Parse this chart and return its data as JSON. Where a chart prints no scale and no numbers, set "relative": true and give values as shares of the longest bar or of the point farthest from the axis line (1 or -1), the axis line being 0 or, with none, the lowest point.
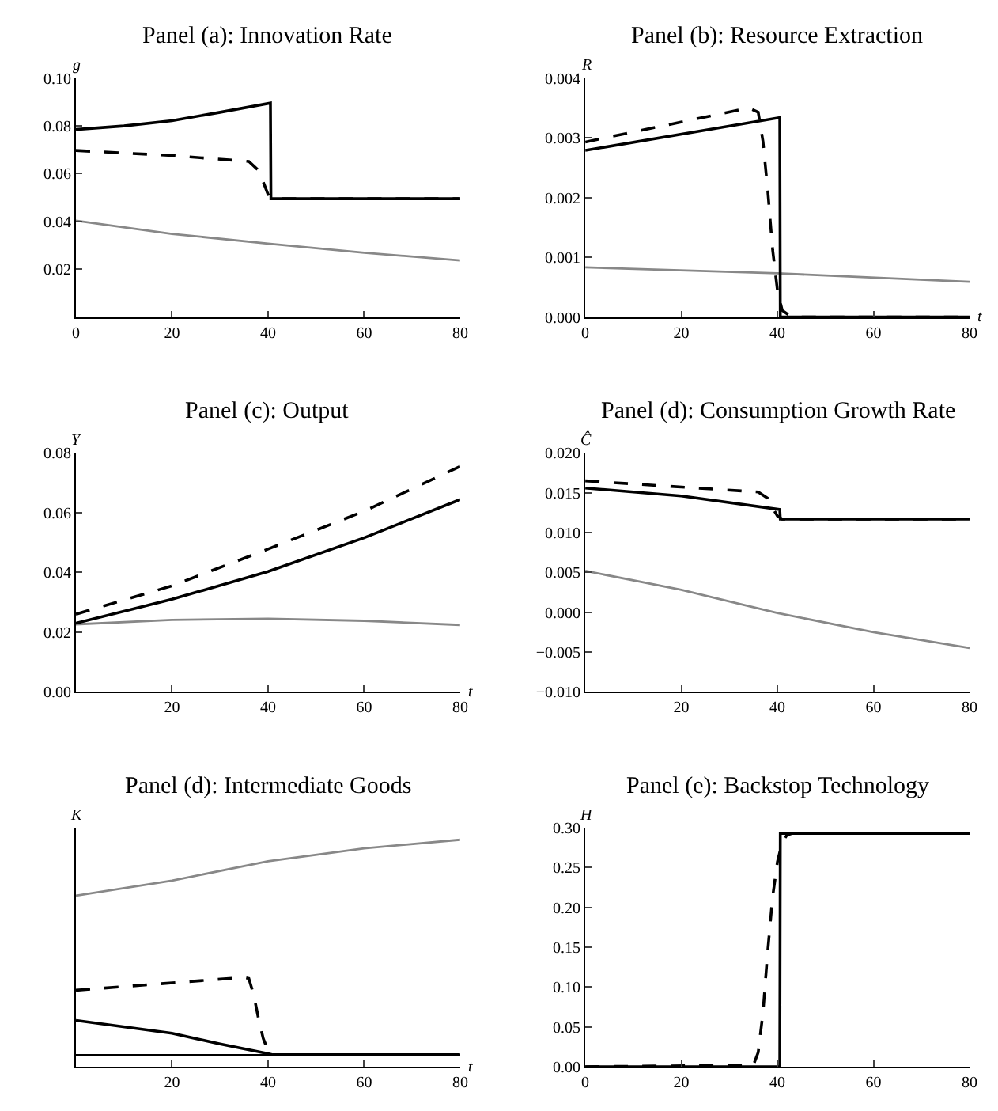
{
  "chart_data": [
    {
      "type": "line",
      "title": "Panel (a): Innovation Rate",
      "ylabel": "g",
      "xlim": [
        0,
        80
      ],
      "xticks": [
        0,
        20,
        40,
        60,
        80
      ],
      "ylim": [
        0,
        0.1
      ],
      "yticks": [
        {
          "value": 0.02,
          "label": "0.02"
        },
        {
          "value": 0.04,
          "label": "0.04"
        },
        {
          "value": 0.06,
          "label": "0.06"
        },
        {
          "value": 0.08,
          "label": "0.08"
        },
        {
          "value": 0.1,
          "label": "0.10"
        }
      ],
      "series": [
        {
          "color": "#000000",
          "line_style": "solid",
          "x": [
            0,
            10,
            20,
            30,
            40.5,
            40.6,
            80
          ],
          "values": [
            0.0785,
            0.08,
            0.0822,
            0.0857,
            0.0896,
            0.0495,
            0.0495
          ]
        },
        {
          "color": "#000000",
          "line_style": "dashed",
          "x": [
            0,
            20,
            36,
            38,
            39,
            40,
            41,
            80
          ],
          "values": [
            0.0697,
            0.0676,
            0.0651,
            0.0614,
            0.0565,
            0.0513,
            0.0495,
            0.0495
          ]
        },
        {
          "color": "#888888",
          "line_style": "solid",
          "x": [
            0,
            20,
            40,
            60,
            80
          ],
          "values": [
            0.0403,
            0.0348,
            0.0307,
            0.0269,
            0.0237
          ]
        }
      ]
    },
    {
      "type": "line",
      "title": "Panel (b): Resource Extraction",
      "ylabel": "R",
      "xlabel": "t",
      "xlim": [
        0,
        80
      ],
      "xticks": [
        0,
        20,
        40,
        60,
        80
      ],
      "ylim": [
        0,
        0.004
      ],
      "yticks": [
        {
          "value": 0,
          "label": "0.000"
        },
        {
          "value": 0.001,
          "label": "0.001"
        },
        {
          "value": 0.002,
          "label": "0.002"
        },
        {
          "value": 0.003,
          "label": "0.003"
        },
        {
          "value": 0.004,
          "label": "0.004"
        }
      ],
      "series": [
        {
          "color": "#000000",
          "line_style": "solid",
          "x": [
            0,
            40.5,
            40.6,
            80
          ],
          "values": [
            0.00279,
            0.00334,
            0,
            0
          ]
        },
        {
          "color": "#000000",
          "line_style": "dashed",
          "x": [
            0,
            34,
            36,
            37,
            38,
            39,
            40,
            41,
            43,
            80
          ],
          "values": [
            0.00293,
            0.0035,
            0.00343,
            0.00294,
            0.00211,
            0.00113,
            0.00045,
            0.00011,
            0,
            0
          ]
        },
        {
          "color": "#888888",
          "line_style": "solid",
          "x": [
            0,
            40,
            80
          ],
          "values": [
            0.00083,
            0.00073,
            0.00059
          ]
        }
      ]
    },
    {
      "type": "line",
      "title": "Panel (c): Output",
      "ylabel": "Y",
      "xlabel": "t",
      "xlim": [
        0,
        80
      ],
      "xticks": [
        20,
        40,
        60,
        80
      ],
      "ylim": [
        0,
        0.08
      ],
      "yticks": [
        {
          "value": 0,
          "label": "0.00"
        },
        {
          "value": 0.02,
          "label": "0.02"
        },
        {
          "value": 0.04,
          "label": "0.04"
        },
        {
          "value": 0.06,
          "label": "0.06"
        },
        {
          "value": 0.08,
          "label": "0.08"
        }
      ],
      "series": [
        {
          "color": "#000000",
          "line_style": "solid",
          "x": [
            0,
            20,
            40,
            60,
            80
          ],
          "values": [
            0.023,
            0.031,
            0.0403,
            0.0516,
            0.0644
          ]
        },
        {
          "color": "#000000",
          "line_style": "dashed",
          "x": [
            0,
            20,
            40,
            60,
            80
          ],
          "values": [
            0.026,
            0.0355,
            0.0478,
            0.0605,
            0.0755
          ]
        },
        {
          "color": "#888888",
          "line_style": "solid",
          "x": [
            0,
            20,
            40,
            60,
            80
          ],
          "values": [
            0.0226,
            0.0241,
            0.0245,
            0.0238,
            0.0224
          ]
        }
      ]
    },
    {
      "type": "line",
      "title": "Panel (d): Consumption Growth Rate",
      "ylabel": "Ĉ",
      "xlim": [
        0,
        80
      ],
      "xticks": [
        20,
        40,
        60,
        80
      ],
      "ylim": [
        -0.01,
        0.02
      ],
      "yticks": [
        {
          "value": -0.01,
          "label": "−0.010"
        },
        {
          "value": -0.005,
          "label": "−0.005"
        },
        {
          "value": 0,
          "label": "0.000"
        },
        {
          "value": 0.005,
          "label": "0.005"
        },
        {
          "value": 0.01,
          "label": "0.010"
        },
        {
          "value": 0.015,
          "label": "0.015"
        },
        {
          "value": 0.02,
          "label": "0.020"
        }
      ],
      "series": [
        {
          "color": "#000000",
          "line_style": "solid",
          "x": [
            0,
            20,
            40.5,
            40.6,
            80
          ],
          "values": [
            0.0156,
            0.0146,
            0.0129,
            0.0117,
            0.0117
          ]
        },
        {
          "color": "#000000",
          "line_style": "dashed",
          "x": [
            0,
            36,
            38,
            39,
            40,
            41,
            80
          ],
          "values": [
            0.0165,
            0.0151,
            0.0143,
            0.0131,
            0.0121,
            0.0117,
            0.0117
          ]
        },
        {
          "color": "#888888",
          "line_style": "solid",
          "x": [
            0,
            20,
            40,
            60,
            80
          ],
          "values": [
            0.0052,
            0.0028,
            -0.0001,
            -0.0025,
            -0.0045
          ]
        }
      ]
    },
    {
      "type": "line",
      "title": "Panel (d): Intermediate Goods",
      "ylabel": "K",
      "xlabel": "t",
      "relative": true,
      "xlim": [
        0,
        80
      ],
      "xticks": [
        20,
        40,
        60,
        80
      ],
      "series": [
        {
          "color": "#000000",
          "line_style": "solid",
          "x": [
            0,
            20,
            30,
            40,
            41,
            80
          ],
          "values": [
            0.16,
            0.1,
            0.05,
            0.005,
            0,
            0
          ]
        },
        {
          "color": "#000000",
          "line_style": "dashed",
          "x": [
            0,
            35,
            36,
            37,
            38,
            39,
            40,
            41,
            80
          ],
          "values": [
            0.3,
            0.36,
            0.355,
            0.28,
            0.17,
            0.075,
            0.02,
            0,
            0
          ]
        },
        {
          "color": "#888888",
          "line_style": "solid",
          "x": [
            0,
            20,
            40,
            60,
            80
          ],
          "values": [
            0.74,
            0.81,
            0.9,
            0.96,
            1.0
          ]
        }
      ]
    },
    {
      "type": "line",
      "title": "Panel (e): Backstop Technology",
      "ylabel": "H",
      "xlim": [
        0,
        80
      ],
      "xticks": [
        0,
        20,
        40,
        60,
        80
      ],
      "ylim": [
        0,
        0.3
      ],
      "yticks": [
        {
          "value": 0,
          "label": "0.00"
        },
        {
          "value": 0.05,
          "label": "0.05"
        },
        {
          "value": 0.1,
          "label": "0.10"
        },
        {
          "value": 0.15,
          "label": "0.15"
        },
        {
          "value": 0.2,
          "label": "0.20"
        },
        {
          "value": 0.25,
          "label": "0.25"
        },
        {
          "value": 0.3,
          "label": "0.30"
        }
      ],
      "series": [
        {
          "color": "#000000",
          "line_style": "solid",
          "x": [
            0,
            40.5,
            40.6,
            80
          ],
          "values": [
            0,
            0,
            0.293,
            0.293
          ]
        },
        {
          "color": "#000000",
          "line_style": "dashed",
          "x": [
            0,
            35,
            36,
            37,
            38,
            39,
            40,
            41,
            42,
            43,
            80
          ],
          "values": [
            0,
            0.002,
            0.018,
            0.068,
            0.146,
            0.213,
            0.257,
            0.282,
            0.291,
            0.293,
            0.293
          ]
        }
      ]
    }
  ]
}
